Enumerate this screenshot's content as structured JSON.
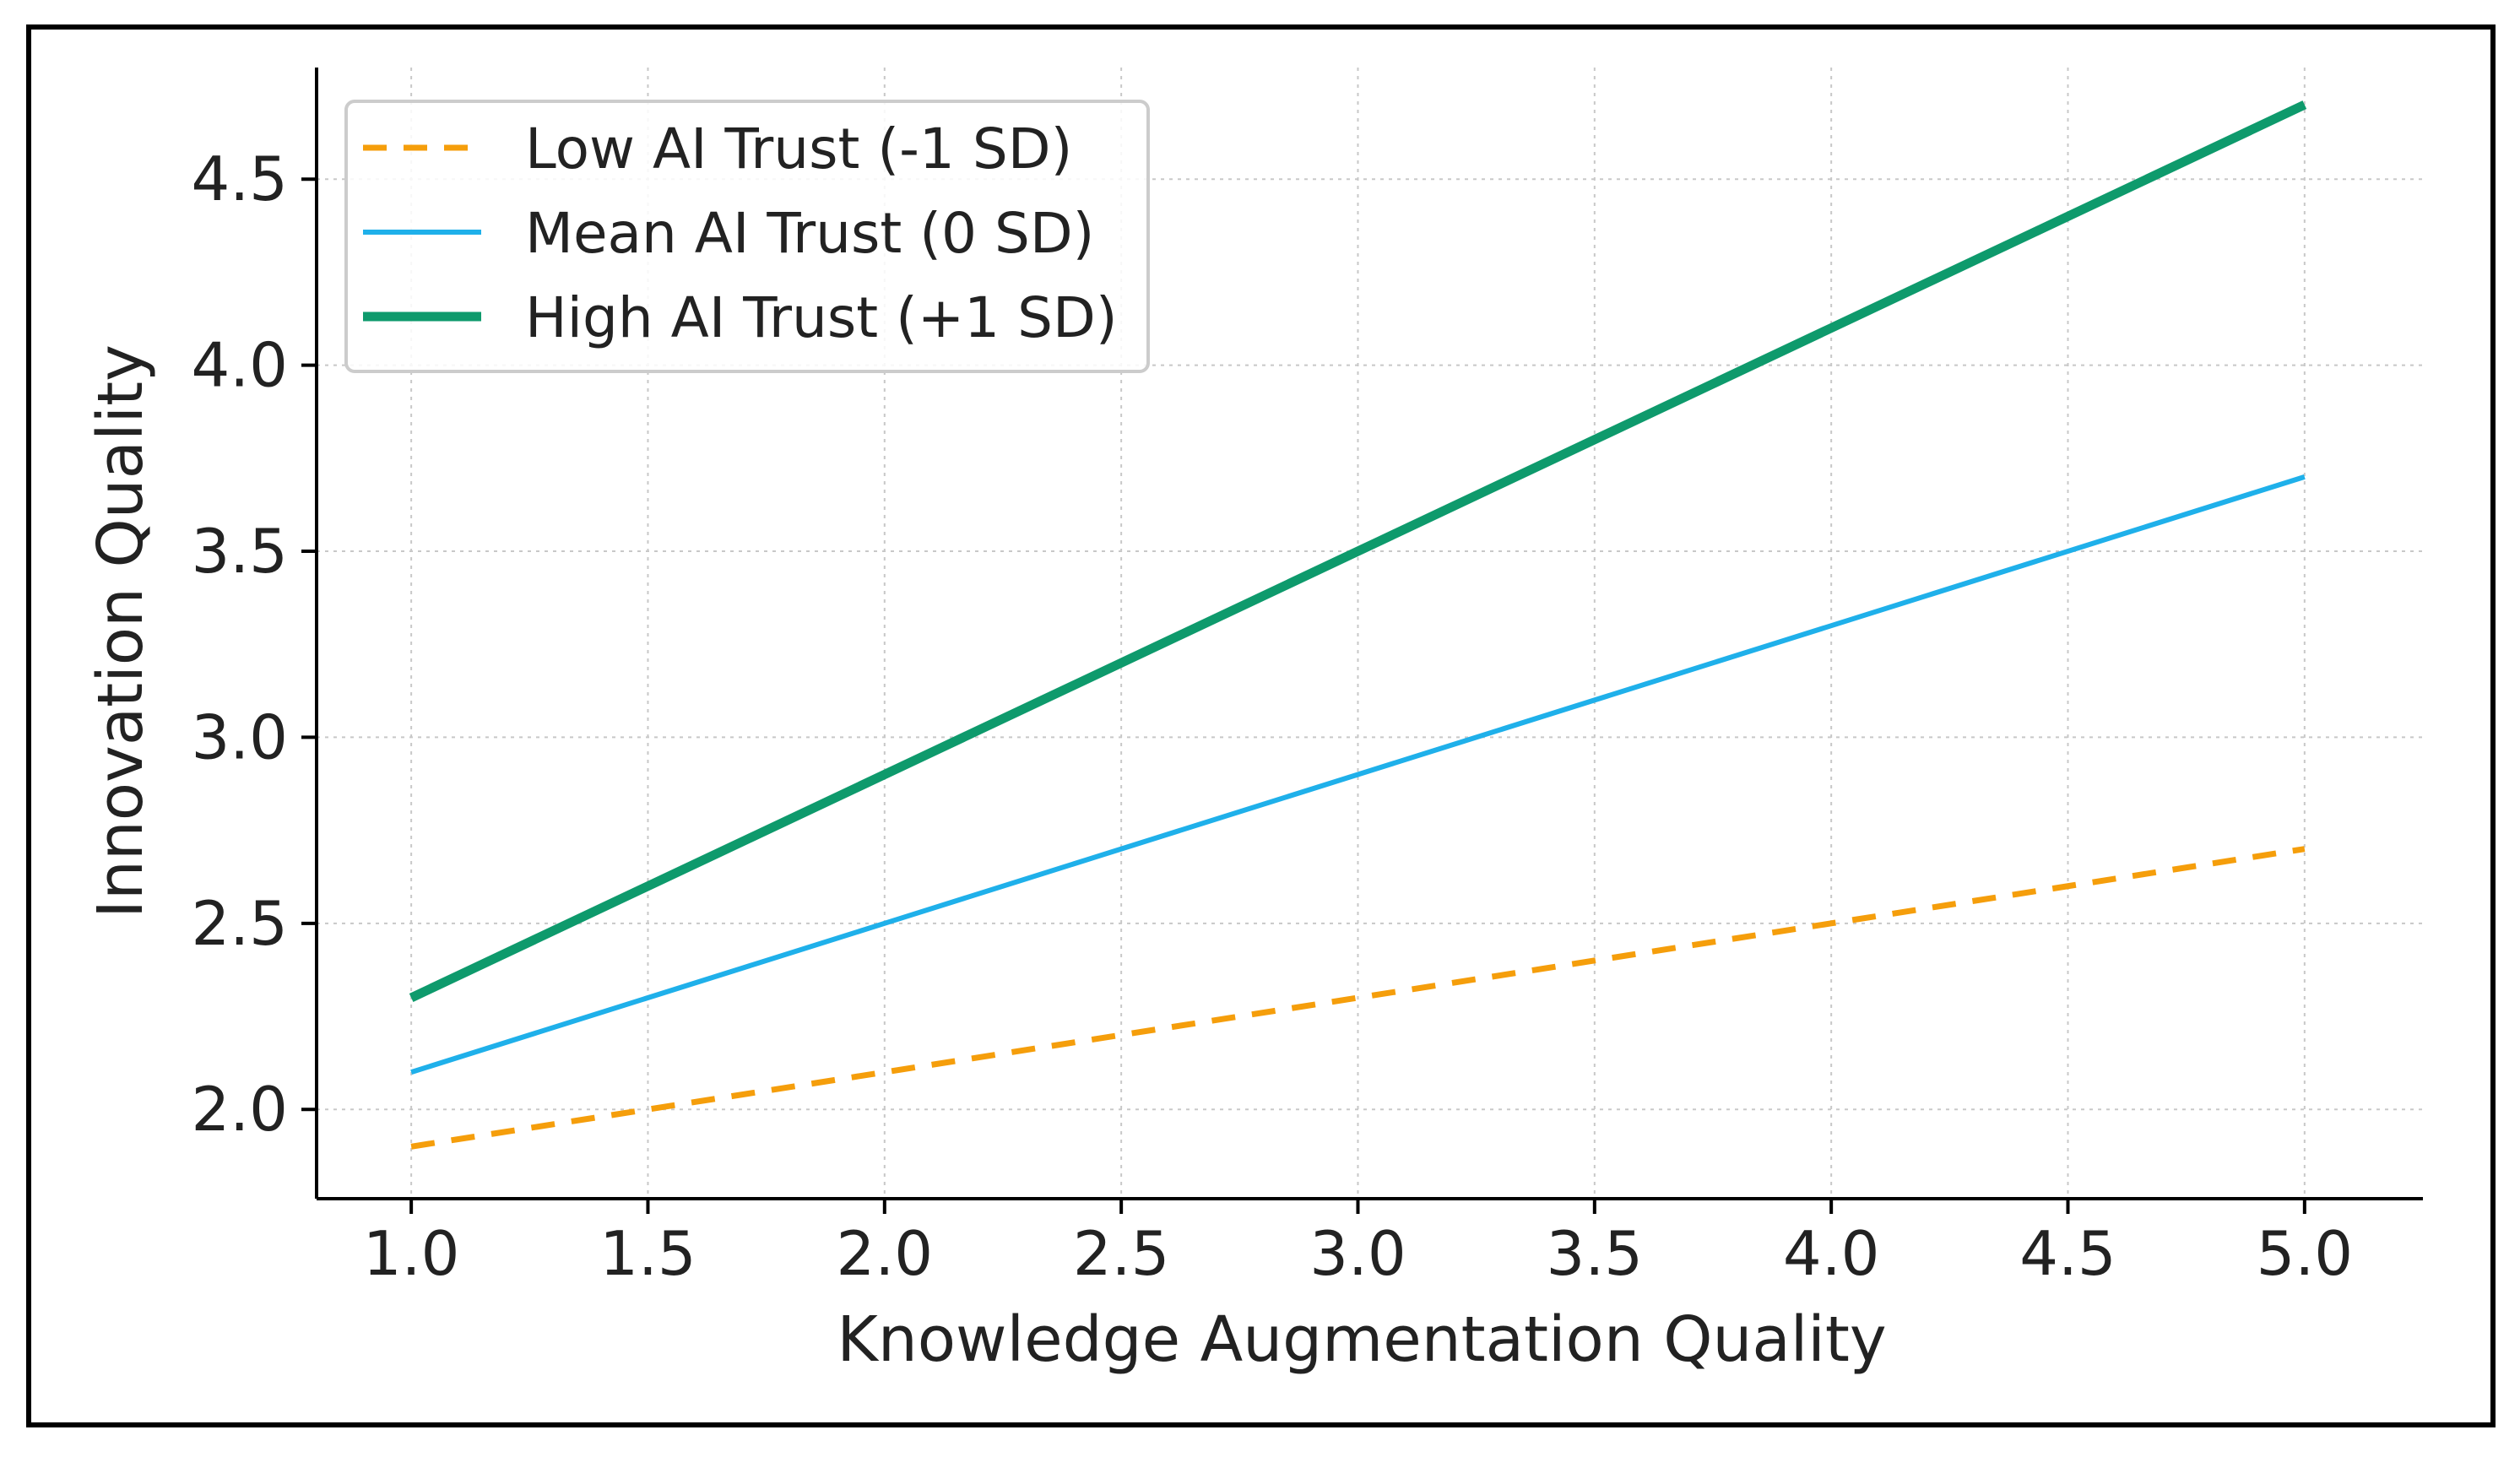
{
  "chart_data": {
    "type": "line",
    "xlabel": "Knowledge Augmentation Quality",
    "ylabel": "Innovation Quality",
    "x": [
      1.0,
      2.0,
      3.0,
      4.0,
      5.0
    ],
    "xlim": [
      0.8,
      5.25
    ],
    "ylim": [
      1.76,
      4.8
    ],
    "xticks": [
      1.0,
      1.5,
      2.0,
      2.5,
      3.0,
      3.5,
      4.0,
      4.5,
      5.0
    ],
    "xtick_labels": [
      "1.0",
      "1.5",
      "2.0",
      "2.5",
      "3.0",
      "3.5",
      "4.0",
      "4.5",
      "5.0"
    ],
    "yticks": [
      2.0,
      2.5,
      3.0,
      3.5,
      4.0,
      4.5
    ],
    "ytick_labels": [
      "2.0",
      "2.5",
      "3.0",
      "3.5",
      "4.0",
      "4.5"
    ],
    "grid": true,
    "legend_position": "upper-left",
    "series": [
      {
        "name": "Low AI Trust (-1 SD)",
        "values": [
          1.9,
          2.1,
          2.3,
          2.5,
          2.7
        ],
        "color": "#f59e0b",
        "style": "dashed"
      },
      {
        "name": "Mean AI Trust (0 SD)",
        "values": [
          2.1,
          2.5,
          2.9,
          3.3,
          3.7
        ],
        "color": "#1fb0ea",
        "style": "solid"
      },
      {
        "name": "High AI Trust (+1 SD)",
        "values": [
          2.3,
          2.9,
          3.5,
          4.1,
          4.7
        ],
        "color": "#0e9a6c",
        "style": "solid-thick"
      }
    ]
  }
}
